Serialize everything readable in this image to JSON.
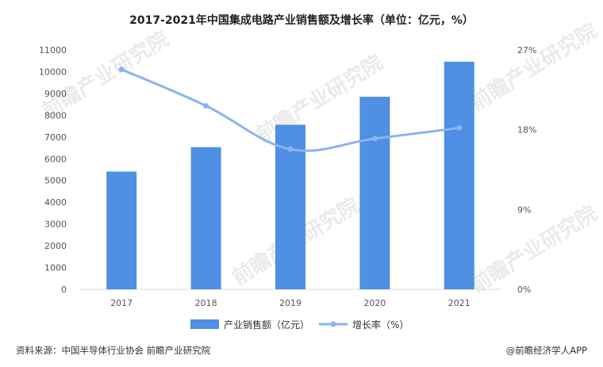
{
  "chart_data": {
    "type": "bar",
    "title": "2017-2021年中国集成电路产业销售额及增长率（单位：亿元，%）",
    "categories": [
      "2017",
      "2018",
      "2019",
      "2020",
      "2021"
    ],
    "series": [
      {
        "name": "产业销售额（亿元）",
        "type": "bar",
        "axis": "left",
        "color": "#4f8fe4",
        "values": [
          5411,
          6532,
          7562,
          8848,
          10458
        ]
      },
      {
        "name": "增长率（%）",
        "type": "line",
        "axis": "right",
        "color": "#8ab4ee",
        "values": [
          24.8,
          20.7,
          15.8,
          17.0,
          18.2
        ]
      }
    ],
    "y_left": {
      "min": 0,
      "max": 11000,
      "step": 1000,
      "ticks": [
        "0",
        "1000",
        "2000",
        "3000",
        "4000",
        "5000",
        "6000",
        "7000",
        "8000",
        "9000",
        "10000",
        "11000"
      ]
    },
    "y_right": {
      "min": 0,
      "max": 27,
      "step": 9,
      "ticks": [
        "0%",
        "9%",
        "18%",
        "27%"
      ]
    },
    "legend_position": "bottom",
    "grid": false
  },
  "footer": {
    "source": "资料来源：中国半导体行业协会 前瞻产业研究院",
    "brand": "@前瞻经济学人APP"
  }
}
